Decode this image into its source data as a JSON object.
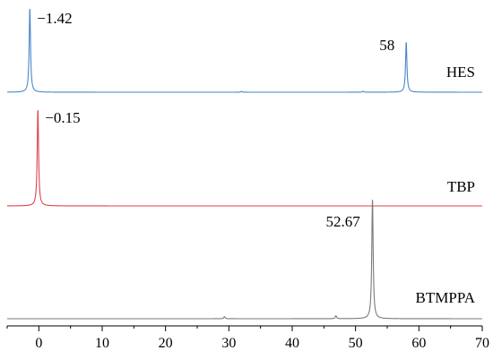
{
  "chart_data": {
    "type": "line",
    "xlim": [
      -5,
      70
    ],
    "x_ticks": [
      0,
      10,
      20,
      30,
      40,
      50,
      60,
      70
    ],
    "x_tick_labels": [
      "0",
      "10",
      "20",
      "30",
      "40",
      "50",
      "60",
      "70"
    ],
    "xlabel": "",
    "ylabel": "",
    "grid": false,
    "layout": "stacked",
    "series": [
      {
        "name": "HES",
        "color": "#4a86c8",
        "peaks": [
          {
            "x": -1.42,
            "height": 1.0,
            "label": "−1.42"
          },
          {
            "x": 58,
            "height": 0.6,
            "label": "58"
          }
        ],
        "minor_peaks": [
          {
            "x": 32.0,
            "height": 0.01
          },
          {
            "x": 51.2,
            "height": 0.012
          }
        ]
      },
      {
        "name": "TBP",
        "color": "#e0424e",
        "peaks": [
          {
            "x": -0.15,
            "height": 1.0,
            "label": "−0.15"
          }
        ],
        "minor_peaks": []
      },
      {
        "name": "BTMPPA",
        "color": "#7a7a7a",
        "peaks": [
          {
            "x": 52.67,
            "height": 1.0,
            "label": "52.67"
          }
        ],
        "minor_peaks": [
          {
            "x": 29.3,
            "height": 0.018
          },
          {
            "x": 46.9,
            "height": 0.025
          }
        ]
      }
    ]
  }
}
